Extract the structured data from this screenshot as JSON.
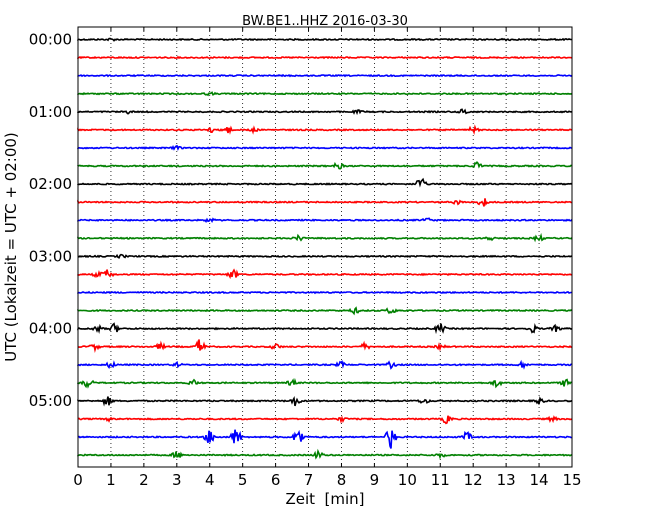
{
  "chart_data": {
    "type": "line",
    "title": "BW.BE1..HHZ 2016-03-30",
    "xlabel": "Zeit  [min]",
    "ylabel": "UTC (Lokalzeit = UTC + 02:00)",
    "xlim": [
      0,
      15
    ],
    "x_ticks": [
      "0",
      "1",
      "2",
      "3",
      "4",
      "5",
      "6",
      "7",
      "8",
      "9",
      "10",
      "11",
      "12",
      "13",
      "14",
      "15"
    ],
    "y_tick_labels": [
      {
        "label": "00:00",
        "trace_index": 0
      },
      {
        "label": "01:00",
        "trace_index": 4
      },
      {
        "label": "02:00",
        "trace_index": 8
      },
      {
        "label": "03:00",
        "trace_index": 12
      },
      {
        "label": "04:00",
        "trace_index": 16
      },
      {
        "label": "05:00",
        "trace_index": 20
      }
    ],
    "trace_minutes": 15,
    "grid": "vertical dotted",
    "color_cycle": [
      "#000000",
      "#ff0000",
      "#0000ff",
      "#008000"
    ],
    "traces": [
      {
        "start": "00:00",
        "events": [
          [
            1.0,
            0.1
          ],
          [
            13.0,
            0.1
          ]
        ]
      },
      {
        "start": "00:15",
        "events": []
      },
      {
        "start": "00:30",
        "events": []
      },
      {
        "start": "00:45",
        "events": [
          [
            4.0,
            0.12
          ]
        ]
      },
      {
        "start": "01:00",
        "events": [
          [
            1.5,
            0.15
          ],
          [
            8.5,
            0.15
          ],
          [
            11.7,
            0.3
          ]
        ]
      },
      {
        "start": "01:15",
        "events": [
          [
            4.0,
            0.3
          ],
          [
            4.5,
            0.5
          ],
          [
            5.3,
            0.2
          ],
          [
            12.0,
            0.3
          ]
        ]
      },
      {
        "start": "01:30",
        "events": [
          [
            3.0,
            0.15
          ]
        ]
      },
      {
        "start": "01:45",
        "events": [
          [
            7.9,
            0.35
          ],
          [
            12.1,
            0.4
          ]
        ]
      },
      {
        "start": "02:00",
        "events": [
          [
            10.4,
            0.7
          ]
        ]
      },
      {
        "start": "02:15",
        "events": [
          [
            11.5,
            0.2
          ],
          [
            12.3,
            0.5
          ]
        ]
      },
      {
        "start": "02:30",
        "events": [
          [
            4.0,
            0.2
          ],
          [
            10.6,
            0.2
          ]
        ]
      },
      {
        "start": "02:45",
        "events": [
          [
            6.7,
            0.3
          ],
          [
            12.5,
            0.2
          ],
          [
            14.0,
            0.3
          ]
        ]
      },
      {
        "start": "03:00",
        "events": [
          [
            1.3,
            0.15
          ]
        ]
      },
      {
        "start": "03:15",
        "events": [
          [
            0.6,
            0.25
          ],
          [
            0.9,
            0.5
          ],
          [
            4.7,
            0.5
          ]
        ]
      },
      {
        "start": "03:30",
        "events": []
      },
      {
        "start": "03:45",
        "events": [
          [
            8.4,
            0.3
          ],
          [
            9.5,
            0.3
          ]
        ]
      },
      {
        "start": "04:00",
        "events": [
          [
            0.6,
            0.3
          ],
          [
            1.1,
            0.5
          ],
          [
            11.0,
            0.5
          ],
          [
            13.8,
            0.4
          ],
          [
            14.5,
            0.3
          ]
        ]
      },
      {
        "start": "04:15",
        "events": [
          [
            0.5,
            0.3
          ],
          [
            2.5,
            0.3
          ],
          [
            3.7,
            0.8
          ],
          [
            6.0,
            0.3
          ],
          [
            8.7,
            0.3
          ],
          [
            11.0,
            0.2
          ]
        ]
      },
      {
        "start": "04:30",
        "events": [
          [
            1.0,
            0.3
          ],
          [
            3.0,
            0.2
          ],
          [
            8.0,
            0.3
          ],
          [
            9.5,
            0.3
          ],
          [
            13.5,
            0.3
          ]
        ]
      },
      {
        "start": "04:45",
        "events": [
          [
            0.3,
            0.5
          ],
          [
            3.5,
            0.3
          ],
          [
            6.5,
            0.3
          ],
          [
            12.7,
            0.4
          ],
          [
            14.8,
            0.4
          ]
        ]
      },
      {
        "start": "05:00",
        "events": [
          [
            0.9,
            0.5
          ],
          [
            6.6,
            0.5
          ],
          [
            10.5,
            0.3
          ],
          [
            14.0,
            0.3
          ]
        ]
      },
      {
        "start": "05:15",
        "events": [
          [
            1.0,
            0.2
          ],
          [
            8.0,
            0.2
          ],
          [
            11.2,
            0.5
          ],
          [
            14.4,
            0.2
          ]
        ]
      },
      {
        "start": "05:30",
        "events": [
          [
            4.0,
            0.8
          ],
          [
            4.8,
            1.0
          ],
          [
            6.7,
            1.0
          ],
          [
            9.5,
            1.2
          ],
          [
            11.8,
            0.5
          ]
        ]
      },
      {
        "start": "05:45",
        "events": [
          [
            3.0,
            0.4
          ],
          [
            7.3,
            0.4
          ],
          [
            11.0,
            0.2
          ]
        ]
      }
    ]
  }
}
